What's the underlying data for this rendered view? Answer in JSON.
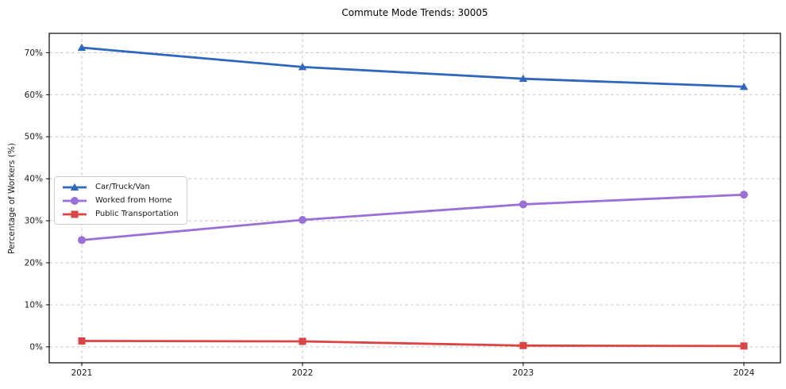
{
  "background_color": "#ffffff",
  "axis_color": "#000000",
  "grid_color": "#c9c9c9",
  "text_color": "#1a1a1a",
  "chart_data": {
    "type": "line",
    "title": "Commute Mode Trends: 30005",
    "xlabel": "",
    "ylabel": "Percentage of Workers (%)",
    "x": [
      2021,
      2022,
      2023,
      2024
    ],
    "xtick_labels": [
      "2021",
      "2022",
      "2023",
      "2024"
    ],
    "ytick_values": [
      0,
      10,
      20,
      30,
      40,
      50,
      60,
      70
    ],
    "ytick_labels": [
      "0%",
      "10%",
      "20%",
      "30%",
      "40%",
      "50%",
      "60%",
      "70%"
    ],
    "ylim": [
      -3.8,
      74.6
    ],
    "grid": true,
    "grid_style": "dashed",
    "legend_position": "center-left",
    "series": [
      {
        "name": "Car/Truck/Van",
        "marker": "triangle",
        "color": "#2e68bd",
        "values": [
          71.2,
          66.6,
          63.8,
          61.9
        ]
      },
      {
        "name": "Worked from Home",
        "marker": "circle",
        "color": "#9a70d8",
        "values": [
          25.4,
          30.2,
          33.9,
          36.2
        ]
      },
      {
        "name": "Public Transportation",
        "marker": "square",
        "color": "#de4343",
        "values": [
          1.4,
          1.3,
          0.3,
          0.2
        ]
      }
    ]
  }
}
